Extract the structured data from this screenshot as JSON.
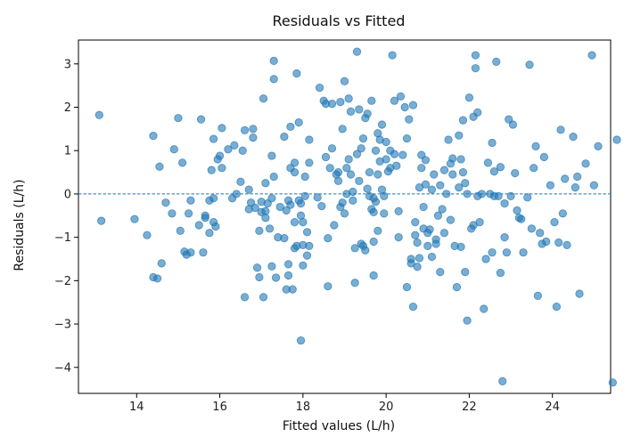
{
  "chart_data": {
    "type": "scatter",
    "title": "Residuals vs Fitted",
    "xlabel": "Fitted values (L/h)",
    "ylabel": "Residuals (L/h)",
    "xlim": [
      12.6,
      25.4
    ],
    "ylim": [
      -4.6,
      3.55
    ],
    "x_ticks": [
      14,
      16,
      18,
      20,
      22,
      24
    ],
    "y_ticks": [
      -4,
      -3,
      -2,
      -1,
      0,
      1,
      2,
      3
    ],
    "reference_line": {
      "y": 0,
      "style": "dashed"
    },
    "point_color": "#1f77b4",
    "line_color": "#1f77b4",
    "series": [
      {
        "name": "residuals",
        "points": [
          [
            13.1,
            1.82
          ],
          [
            13.15,
            -0.62
          ],
          [
            13.95,
            -0.58
          ],
          [
            14.25,
            -0.95
          ],
          [
            14.4,
            1.34
          ],
          [
            14.4,
            -1.92
          ],
          [
            14.5,
            -1.95
          ],
          [
            14.55,
            0.63
          ],
          [
            14.6,
            -1.6
          ],
          [
            14.7,
            -0.2
          ],
          [
            14.85,
            -0.45
          ],
          [
            14.9,
            1.03
          ],
          [
            15.0,
            1.75
          ],
          [
            15.05,
            -0.85
          ],
          [
            15.1,
            0.72
          ],
          [
            15.15,
            -1.33
          ],
          [
            15.2,
            -1.4
          ],
          [
            15.25,
            -0.45
          ],
          [
            15.3,
            -1.35
          ],
          [
            15.3,
            -0.15
          ],
          [
            15.5,
            -0.72
          ],
          [
            15.55,
            1.72
          ],
          [
            15.6,
            -1.35
          ],
          [
            15.65,
            -0.55
          ],
          [
            15.65,
            -0.5
          ],
          [
            15.75,
            -0.9
          ],
          [
            15.75,
            -0.15
          ],
          [
            15.8,
            0.55
          ],
          [
            15.85,
            1.27
          ],
          [
            15.85,
            -0.65
          ],
          [
            15.85,
            -0.1
          ],
          [
            15.9,
            -0.75
          ],
          [
            15.95,
            0.8
          ],
          [
            16.0,
            0.88
          ],
          [
            16.05,
            1.52
          ],
          [
            16.05,
            0.6
          ],
          [
            16.2,
            1.03
          ],
          [
            16.3,
            -0.1
          ],
          [
            16.35,
            1.12
          ],
          [
            16.4,
            0.0
          ],
          [
            16.5,
            0.28
          ],
          [
            16.55,
            1.0
          ],
          [
            16.6,
            -2.38
          ],
          [
            16.6,
            1.47
          ],
          [
            16.7,
            -0.35
          ],
          [
            16.7,
            0.1
          ],
          [
            16.75,
            -0.2
          ],
          [
            16.8,
            1.5
          ],
          [
            16.8,
            1.3
          ],
          [
            16.85,
            -0.32
          ],
          [
            16.9,
            -1.7
          ],
          [
            16.95,
            -1.92
          ],
          [
            16.95,
            -0.85
          ],
          [
            17.0,
            -0.18
          ],
          [
            17.0,
            -0.42
          ],
          [
            17.05,
            2.2
          ],
          [
            17.05,
            -2.38
          ],
          [
            17.1,
            0.25
          ],
          [
            17.1,
            -0.55
          ],
          [
            17.1,
            -0.4
          ],
          [
            17.15,
            -0.22
          ],
          [
            17.2,
            -0.8
          ],
          [
            17.25,
            -1.67
          ],
          [
            17.25,
            0.88
          ],
          [
            17.25,
            -0.1
          ],
          [
            17.3,
            3.07
          ],
          [
            17.3,
            2.65
          ],
          [
            17.3,
            0.4
          ],
          [
            17.35,
            -1.93
          ],
          [
            17.4,
            -1.0
          ],
          [
            17.45,
            -0.3
          ],
          [
            17.55,
            1.32
          ],
          [
            17.55,
            -1.02
          ],
          [
            17.6,
            -2.2
          ],
          [
            17.6,
            -0.38
          ],
          [
            17.65,
            -0.15
          ],
          [
            17.65,
            -1.62
          ],
          [
            17.65,
            -1.88
          ],
          [
            17.7,
            1.55
          ],
          [
            17.7,
            0.6
          ],
          [
            17.7,
            -0.25
          ],
          [
            17.75,
            -2.2
          ],
          [
            17.8,
            -1.25
          ],
          [
            17.8,
            0.72
          ],
          [
            17.8,
            -0.65
          ],
          [
            17.8,
            0.5
          ],
          [
            17.85,
            2.78
          ],
          [
            17.85,
            -1.2
          ],
          [
            17.9,
            1.65
          ],
          [
            17.9,
            -0.15
          ],
          [
            17.95,
            -3.38
          ],
          [
            17.95,
            -0.22
          ],
          [
            17.95,
            -0.5
          ],
          [
            18.0,
            -1.18
          ],
          [
            18.0,
            -1.65
          ],
          [
            18.0,
            -0.65
          ],
          [
            18.05,
            0.4
          ],
          [
            18.05,
            -0.05
          ],
          [
            18.1,
            -0.88
          ],
          [
            18.1,
            -1.42
          ],
          [
            18.15,
            -1.2
          ],
          [
            18.15,
            0.72
          ],
          [
            18.15,
            1.25
          ],
          [
            18.35,
            -0.08
          ],
          [
            18.4,
            2.45
          ],
          [
            18.45,
            -0.28
          ],
          [
            18.5,
            2.15
          ],
          [
            18.55,
            2.08
          ],
          [
            18.55,
            0.85
          ],
          [
            18.6,
            -2.13
          ],
          [
            18.6,
            -1.02
          ],
          [
            18.65,
            0.6
          ],
          [
            18.7,
            2.08
          ],
          [
            18.7,
            1.05
          ],
          [
            18.75,
            -0.72
          ],
          [
            18.8,
            0.45
          ],
          [
            18.85,
            0.3
          ],
          [
            18.85,
            0.5
          ],
          [
            18.9,
            2.12
          ],
          [
            18.9,
            -0.3
          ],
          [
            18.95,
            1.5
          ],
          [
            18.95,
            -0.2
          ],
          [
            19.0,
            2.6
          ],
          [
            19.0,
            -0.45
          ],
          [
            19.05,
            0.0
          ],
          [
            19.05,
            0.6
          ],
          [
            19.1,
            2.2
          ],
          [
            19.1,
            0.8
          ],
          [
            19.15,
            1.9
          ],
          [
            19.15,
            0.45
          ],
          [
            19.2,
            -0.15
          ],
          [
            19.2,
            0.05
          ],
          [
            19.25,
            -1.25
          ],
          [
            19.25,
            -2.05
          ],
          [
            19.3,
            3.28
          ],
          [
            19.3,
            0.92
          ],
          [
            19.35,
            1.95
          ],
          [
            19.35,
            0.3
          ],
          [
            19.4,
            1.05
          ],
          [
            19.4,
            -1.15
          ],
          [
            19.45,
            1.28
          ],
          [
            19.45,
            -1.2
          ],
          [
            19.5,
            -1.3
          ],
          [
            19.5,
            1.75
          ],
          [
            19.55,
            1.85
          ],
          [
            19.55,
            0.12
          ],
          [
            19.6,
            0.5
          ],
          [
            19.6,
            -0.05
          ],
          [
            19.65,
            2.15
          ],
          [
            19.65,
            -0.35
          ],
          [
            19.7,
            -1.1
          ],
          [
            19.7,
            -0.1
          ],
          [
            19.7,
            -1.88
          ],
          [
            19.7,
            -0.42
          ],
          [
            19.75,
            1.0
          ],
          [
            19.75,
            -0.18
          ],
          [
            19.8,
            0.45
          ],
          [
            19.8,
            1.4
          ],
          [
            19.8,
            -0.85
          ],
          [
            19.85,
            1.25
          ],
          [
            19.85,
            0.75
          ],
          [
            19.9,
            1.6
          ],
          [
            19.9,
            0.1
          ],
          [
            19.95,
            -0.05
          ],
          [
            19.95,
            -0.45
          ],
          [
            20.0,
            1.2
          ],
          [
            20.0,
            0.8
          ],
          [
            20.05,
            0.52
          ],
          [
            20.1,
            0.6
          ],
          [
            20.1,
            1.0
          ],
          [
            20.15,
            3.2
          ],
          [
            20.2,
            2.15
          ],
          [
            20.2,
            0.92
          ],
          [
            20.25,
            0.65
          ],
          [
            20.3,
            -0.4
          ],
          [
            20.3,
            -1.0
          ],
          [
            20.35,
            2.25
          ],
          [
            20.4,
            0.9
          ],
          [
            20.45,
            2.0
          ],
          [
            20.5,
            1.28
          ],
          [
            20.5,
            -2.15
          ],
          [
            20.55,
            1.72
          ],
          [
            20.6,
            -1.6
          ],
          [
            20.6,
            -1.5
          ],
          [
            20.65,
            -2.6
          ],
          [
            20.65,
            2.05
          ],
          [
            20.7,
            -0.95
          ],
          [
            20.7,
            -0.65
          ],
          [
            20.75,
            -1.12
          ],
          [
            20.75,
            -1.68
          ],
          [
            20.8,
            -1.48
          ],
          [
            20.8,
            0.15
          ],
          [
            20.85,
            0.6
          ],
          [
            20.85,
            0.9
          ],
          [
            20.9,
            -0.3
          ],
          [
            20.9,
            -0.8
          ],
          [
            20.95,
            0.22
          ],
          [
            20.95,
            0.78
          ],
          [
            21.0,
            -1.2
          ],
          [
            21.0,
            -0.9
          ],
          [
            21.05,
            -0.82
          ],
          [
            21.1,
            -1.45
          ],
          [
            21.1,
            0.1
          ],
          [
            21.15,
            0.45
          ],
          [
            21.2,
            -1.15
          ],
          [
            21.2,
            -1.05
          ],
          [
            21.25,
            -0.5
          ],
          [
            21.3,
            -1.8
          ],
          [
            21.3,
            0.2
          ],
          [
            21.35,
            -0.35
          ],
          [
            21.4,
            -0.9
          ],
          [
            21.4,
            0.55
          ],
          [
            21.45,
            0.0
          ],
          [
            21.5,
            1.25
          ],
          [
            21.55,
            0.7
          ],
          [
            21.55,
            -0.6
          ],
          [
            21.6,
            0.82
          ],
          [
            21.6,
            0.45
          ],
          [
            21.65,
            -1.2
          ],
          [
            21.7,
            -2.15
          ],
          [
            21.75,
            1.35
          ],
          [
            21.75,
            0.15
          ],
          [
            21.8,
            -1.22
          ],
          [
            21.8,
            0.8
          ],
          [
            21.85,
            1.7
          ],
          [
            21.85,
            0.5
          ],
          [
            21.9,
            -1.8
          ],
          [
            21.9,
            0.25
          ],
          [
            21.95,
            0.0
          ],
          [
            21.95,
            -2.92
          ],
          [
            22.0,
            2.22
          ],
          [
            22.05,
            -0.8
          ],
          [
            22.1,
            1.78
          ],
          [
            22.1,
            -0.72
          ],
          [
            22.15,
            3.2
          ],
          [
            22.15,
            2.9
          ],
          [
            22.2,
            -0.05
          ],
          [
            22.2,
            1.88
          ],
          [
            22.25,
            -0.65
          ],
          [
            22.3,
            0.0
          ],
          [
            22.35,
            -2.65
          ],
          [
            22.4,
            -1.5
          ],
          [
            22.45,
            0.72
          ],
          [
            22.5,
            0.0
          ],
          [
            22.55,
            1.18
          ],
          [
            22.55,
            -1.35
          ],
          [
            22.6,
            0.52
          ],
          [
            22.6,
            -0.05
          ],
          [
            22.65,
            3.05
          ],
          [
            22.7,
            -0.05
          ],
          [
            22.75,
            0.62
          ],
          [
            22.75,
            -1.82
          ],
          [
            22.8,
            -4.32
          ],
          [
            22.85,
            -0.22
          ],
          [
            22.85,
            -1.0
          ],
          [
            22.9,
            -1.35
          ],
          [
            22.95,
            1.72
          ],
          [
            23.0,
            -0.05
          ],
          [
            23.05,
            1.6
          ],
          [
            23.1,
            0.48
          ],
          [
            23.15,
            -0.38
          ],
          [
            23.2,
            -0.55
          ],
          [
            23.25,
            -0.58
          ],
          [
            23.3,
            -1.35
          ],
          [
            23.4,
            -0.08
          ],
          [
            23.45,
            2.98
          ],
          [
            23.5,
            -0.8
          ],
          [
            23.55,
            0.6
          ],
          [
            23.6,
            1.1
          ],
          [
            23.65,
            -2.35
          ],
          [
            23.7,
            -0.9
          ],
          [
            23.75,
            -1.15
          ],
          [
            23.8,
            0.85
          ],
          [
            23.85,
            -1.1
          ],
          [
            23.95,
            0.2
          ],
          [
            24.05,
            -0.65
          ],
          [
            24.1,
            -2.6
          ],
          [
            24.15,
            -1.12
          ],
          [
            24.2,
            1.48
          ],
          [
            24.25,
            -0.45
          ],
          [
            24.3,
            0.35
          ],
          [
            24.35,
            -1.18
          ],
          [
            24.5,
            1.32
          ],
          [
            24.55,
            0.15
          ],
          [
            24.6,
            0.4
          ],
          [
            24.65,
            -2.3
          ],
          [
            24.8,
            0.7
          ],
          [
            24.95,
            3.2
          ],
          [
            25.0,
            0.2
          ],
          [
            25.1,
            1.1
          ],
          [
            25.45,
            -4.35
          ],
          [
            25.55,
            1.25
          ]
        ]
      }
    ]
  }
}
